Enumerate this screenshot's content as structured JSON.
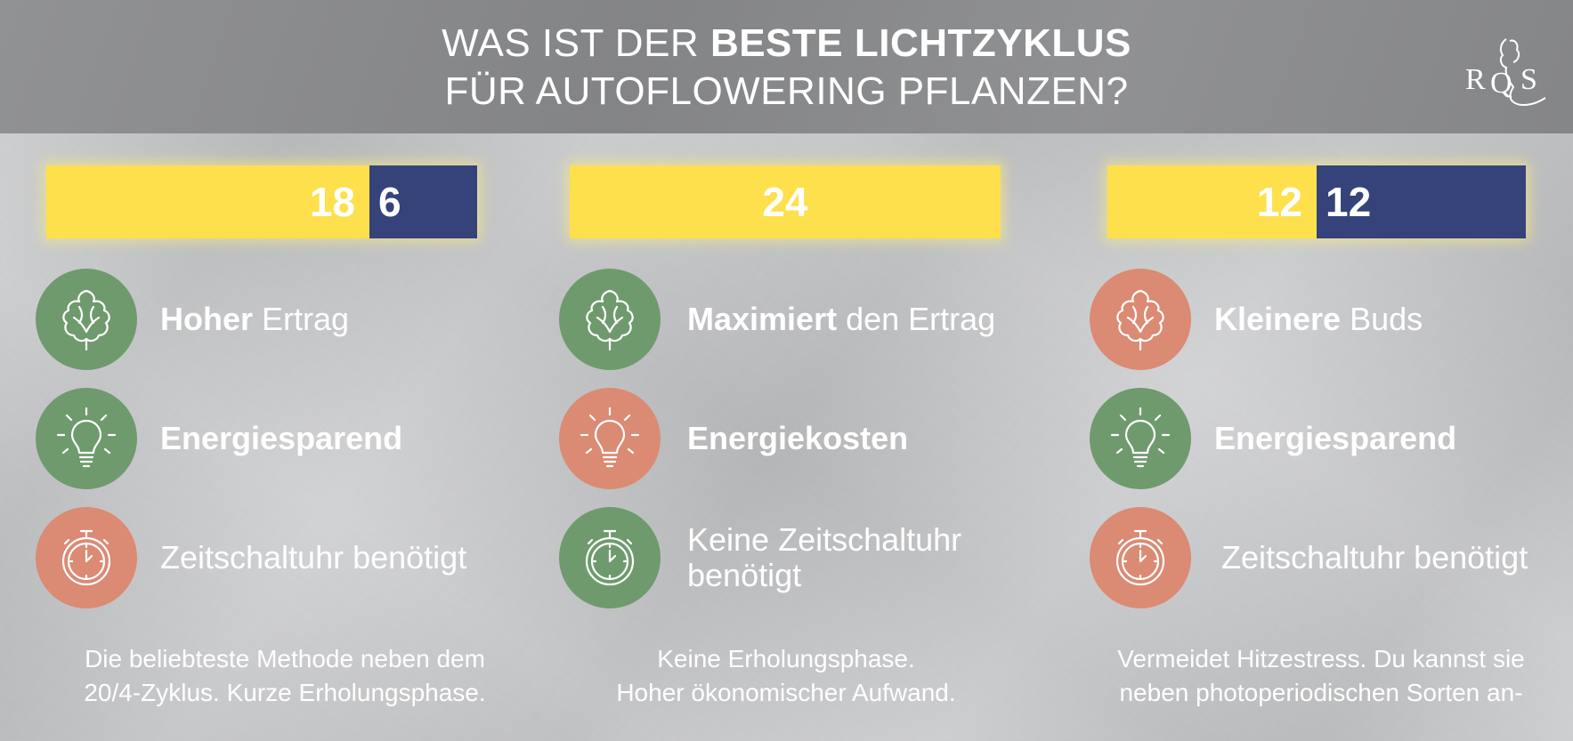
{
  "header": {
    "title_line1_prefix": "WAS IST DER ",
    "title_line1_bold": "BESTE LICHTZYKLUS",
    "title_line2": "FÜR AUTOFLOWERING PFLANZEN?",
    "logo_letters": "RQS"
  },
  "colors": {
    "light": "#fde04c",
    "dark": "#36427a",
    "pro": "#6f9a6e",
    "con": "#db8a74"
  },
  "columns": [
    {
      "light_hours": "18",
      "dark_hours": "6",
      "light_fraction": 0.75,
      "features": [
        {
          "icon": "bud-icon",
          "tone": "pro",
          "bold": "Hoher",
          "rest": " Ertrag"
        },
        {
          "icon": "lightbulb-icon",
          "tone": "pro",
          "bold": "Energiesparend",
          "rest": ""
        },
        {
          "icon": "stopwatch-icon",
          "tone": "con",
          "bold": "",
          "rest": "Zeitschaltuhr benötigt"
        }
      ],
      "description_line1": "Die beliebteste Methode neben dem",
      "description_line2": "20/4-Zyklus. Kurze Erholungsphase."
    },
    {
      "light_hours": "24",
      "dark_hours": "",
      "light_fraction": 1.0,
      "features": [
        {
          "icon": "bud-icon",
          "tone": "pro",
          "bold": "Maximiert",
          "rest": " den Ertrag"
        },
        {
          "icon": "lightbulb-icon",
          "tone": "con",
          "bold": "Energiekosten",
          "rest": ""
        },
        {
          "icon": "stopwatch-icon",
          "tone": "pro",
          "bold": "",
          "rest": "Keine Zeitschaltuhr",
          "rest_line2": "benötigt"
        }
      ],
      "description_line1": "Keine Erholungsphase.",
      "description_line2": "Hoher ökonomischer Aufwand."
    },
    {
      "light_hours": "12",
      "dark_hours": "12",
      "light_fraction": 0.5,
      "features": [
        {
          "icon": "bud-icon",
          "tone": "con",
          "bold": "Kleinere",
          "rest": " Buds"
        },
        {
          "icon": "lightbulb-icon",
          "tone": "pro",
          "bold": "Energiesparend",
          "rest": ""
        },
        {
          "icon": "stopwatch-icon",
          "tone": "con",
          "bold": "",
          "rest": "Zeitschaltuhr benötigt"
        }
      ],
      "description_line1": "Vermeidet Hitzestress. Du kannst sie",
      "description_line2": "neben photoperiodischen Sorten an-"
    }
  ]
}
